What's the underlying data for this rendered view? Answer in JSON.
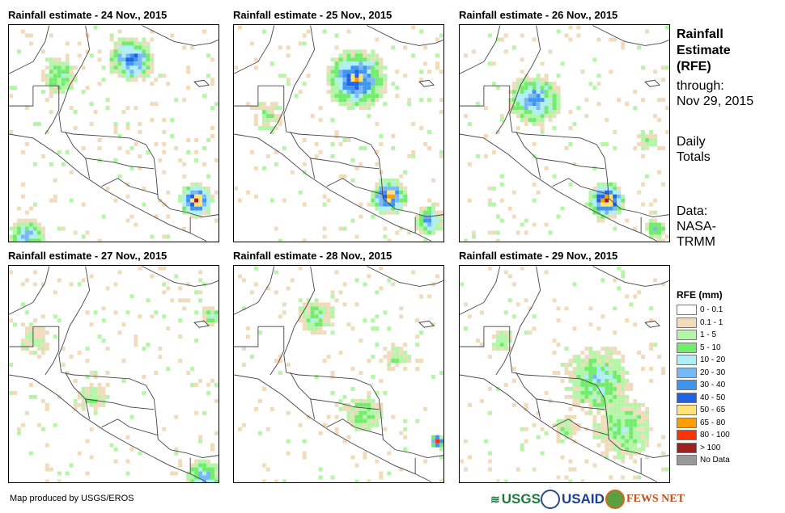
{
  "panels": [
    {
      "title": "Rainfall estimate - 24 Nov., 2015"
    },
    {
      "title": "Rainfall estimate - 25 Nov., 2015"
    },
    {
      "title": "Rainfall estimate - 26 Nov., 2015"
    },
    {
      "title": "Rainfall estimate - 27 Nov., 2015"
    },
    {
      "title": "Rainfall estimate - 28 Nov., 2015"
    },
    {
      "title": "Rainfall estimate - 29 Nov., 2015"
    }
  ],
  "side": {
    "l1": "Rainfall",
    "l2": "Estimate",
    "l3": "(RFE)",
    "l4": "through:",
    "l5": "Nov 29, 2015",
    "l6": "Daily",
    "l7": "Totals",
    "l8": "Data:",
    "l9": "NASA-",
    "l10": "TRMM"
  },
  "legend": {
    "title": "RFE (mm)",
    "items": [
      {
        "label": "0 - 0.1",
        "color": "#ffffff"
      },
      {
        "label": "0.1 - 1",
        "color": "#f0dcbc"
      },
      {
        "label": "1 - 5",
        "color": "#b4f5a8"
      },
      {
        "label": "5 - 10",
        "color": "#72ec6c"
      },
      {
        "label": "10 - 20",
        "color": "#b0eef6"
      },
      {
        "label": "20 - 30",
        "color": "#78b8f6"
      },
      {
        "label": "30 - 40",
        "color": "#3e95f0"
      },
      {
        "label": "40 - 50",
        "color": "#1e62e6"
      },
      {
        "label": "50 - 65",
        "color": "#ffe27a"
      },
      {
        "label": "65 - 80",
        "color": "#ff9e00"
      },
      {
        "label": "80 - 100",
        "color": "#ff3300"
      },
      {
        "label": "> 100",
        "color": "#a01e1e"
      },
      {
        "label": "No Data",
        "color": "#999999"
      }
    ]
  },
  "credit": "Map produced by USGS/EROS",
  "logos": {
    "usgs": "USGS",
    "usaid": "USAID",
    "fews": "FEWS NET"
  }
}
